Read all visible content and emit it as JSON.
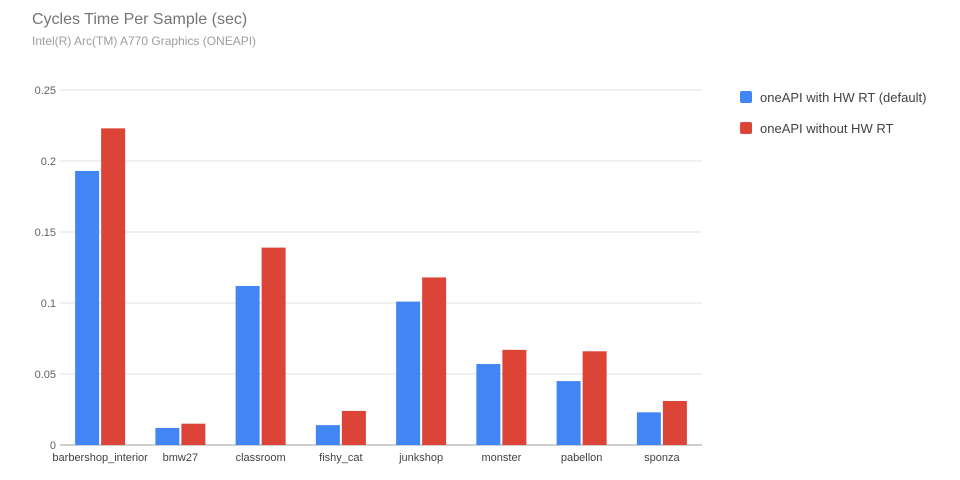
{
  "chart_data": {
    "type": "bar",
    "title": "Cycles Time Per Sample (sec)",
    "subtitle": "Intel(R) Arc(TM) A770 Graphics (ONEAPI)",
    "xlabel": "",
    "ylabel": "",
    "categories": [
      "barbershop_interior",
      "bmw27",
      "classroom",
      "fishy_cat",
      "junkshop",
      "monster",
      "pabellon",
      "sponza"
    ],
    "series": [
      {
        "name": "oneAPI with HW RT (default)",
        "color": "#4285f4",
        "values": [
          0.193,
          0.012,
          0.112,
          0.014,
          0.101,
          0.057,
          0.045,
          0.023
        ]
      },
      {
        "name": "oneAPI without HW RT",
        "color": "#db4437",
        "values": [
          0.223,
          0.015,
          0.139,
          0.024,
          0.118,
          0.067,
          0.066,
          0.031
        ]
      }
    ],
    "ylim": [
      0,
      0.25
    ],
    "yticks": [
      {
        "value": 0,
        "label": "0"
      },
      {
        "value": 0.05,
        "label": "0.05"
      },
      {
        "value": 0.1,
        "label": "0.1"
      },
      {
        "value": 0.15,
        "label": "0.15"
      },
      {
        "value": 0.2,
        "label": "0.2"
      },
      {
        "value": 0.25,
        "label": "0.25"
      }
    ],
    "grid": true,
    "legend_position": "right"
  }
}
